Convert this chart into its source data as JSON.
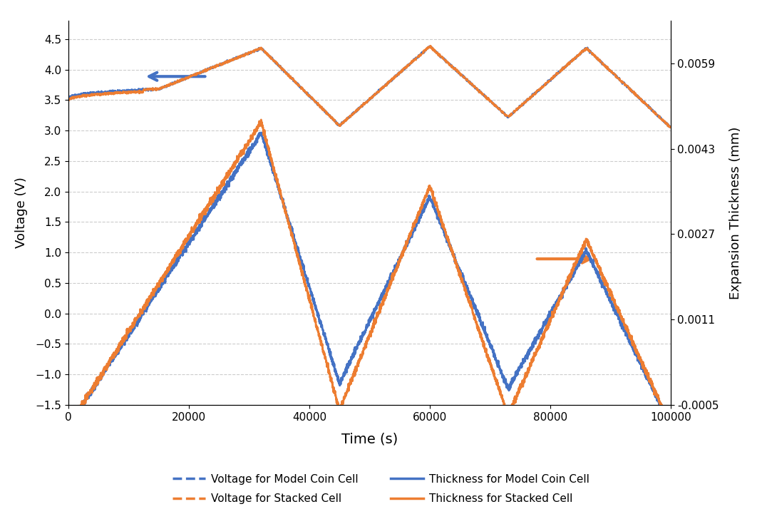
{
  "title": "",
  "xlabel": "Time (s)",
  "ylabel_left": "Voltage (V)",
  "ylabel_right": "Expansion Thickness (mm)",
  "xlim": [
    0,
    100000
  ],
  "ylim_left": [
    -1.5,
    4.8
  ],
  "ylim_right": [
    -0.0005,
    0.0067
  ],
  "yticks_left": [
    -1.5,
    -1.0,
    -0.5,
    0.0,
    0.5,
    1.0,
    1.5,
    2.0,
    2.5,
    3.0,
    3.5,
    4.0,
    4.5
  ],
  "yticks_right": [
    -0.0005,
    0.0011,
    0.0027,
    0.0043,
    0.0059
  ],
  "xticks": [
    0,
    20000,
    40000,
    60000,
    80000,
    100000
  ],
  "blue_color": "#4472C4",
  "orange_color": "#ED7D31",
  "background_color": "#FFFFFF",
  "grid_color": "#AAAAAA",
  "legend_entries": [
    "Voltage for Model Coin Cell",
    "Voltage for Stacked Cell",
    "Thickness for Model Coin Cell",
    "Thickness for Stacked Cell"
  ],
  "voltage_segments": {
    "t0": 0,
    "t1": 15000,
    "t2": 32000,
    "t3": 45000,
    "t4": 60000,
    "t5": 73000,
    "t6": 86000,
    "t7": 100000,
    "v0": 3.52,
    "v1": 3.68,
    "v2": 4.35,
    "v3": 3.08,
    "v4": 4.38,
    "v5": 3.22,
    "v6": 4.35,
    "v7": 3.05
  },
  "thickness_peaks_blue": [
    -0.0009,
    0.0046,
    -0.0001,
    0.0034,
    -0.0002,
    0.0024,
    -0.0009
  ],
  "thickness_peaks_orange": [
    -0.0009,
    0.0048,
    -0.0006,
    0.0036,
    -0.0007,
    0.0026,
    -0.0009
  ],
  "thickness_times": [
    0,
    32000,
    45000,
    60000,
    73000,
    86000,
    100000
  ]
}
